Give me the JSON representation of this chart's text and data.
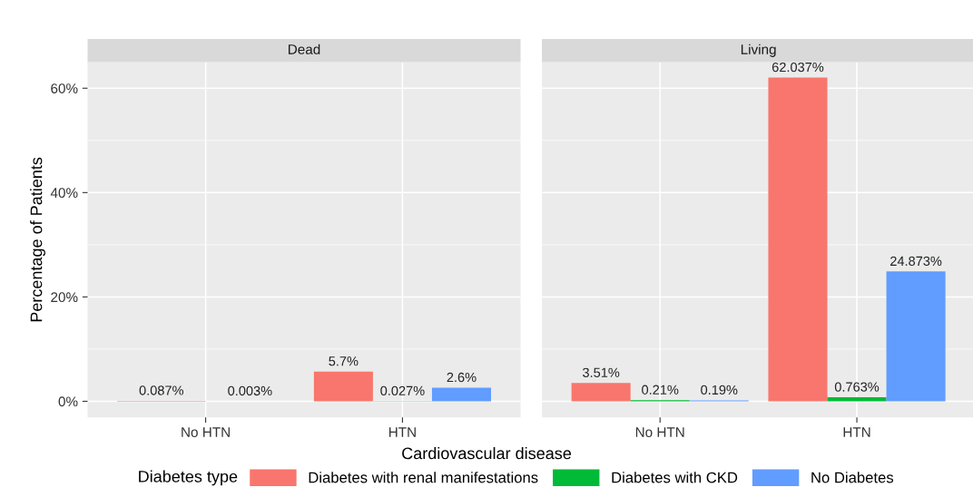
{
  "chart_data": [
    {
      "type": "bar",
      "title": "Dead",
      "ylabel": "Percentage of Patients",
      "xlabel": "Cardiovascular disease",
      "legend_title": "Diabetes type",
      "legend": "bottom",
      "grid": true,
      "categories": [
        "No HTN",
        "HTN"
      ],
      "ylim": [
        -3.1,
        65
      ],
      "yticks": [
        {
          "value": 0,
          "label": "0%"
        },
        {
          "value": 20,
          "label": "20%"
        },
        {
          "value": 40,
          "label": "40%"
        },
        {
          "value": 60,
          "label": "60%"
        }
      ],
      "series": [
        {
          "name": "Diabetes with renal manifestations",
          "color": "#f8766d",
          "values": [
            0.087,
            5.7
          ],
          "value_labels": [
            "0.087%",
            "5.7%"
          ]
        },
        {
          "name": "Diabetes with CKD",
          "color": "#00ba38",
          "values": [
            null,
            0.027
          ],
          "value_labels": [
            null,
            "0.027%"
          ]
        },
        {
          "name": "No Diabetes",
          "color": "#619cff",
          "values": [
            0.003,
            2.6
          ],
          "value_labels": [
            "0.003%",
            "2.6%"
          ]
        }
      ]
    },
    {
      "type": "bar",
      "title": "Living",
      "grid": true,
      "tick_labels": "x",
      "categories": [
        "No HTN",
        "HTN"
      ],
      "ylim": [
        -3.1,
        65
      ],
      "yticks": [
        0,
        20,
        40,
        60
      ],
      "series": [
        {
          "color": "#f8766d",
          "values": [
            3.51,
            62.037
          ],
          "value_labels": [
            "3.51%",
            "62.037%"
          ]
        },
        {
          "color": "#00ba38",
          "values": [
            0.21,
            0.763
          ],
          "value_labels": [
            "0.21%",
            "0.763%"
          ]
        },
        {
          "color": "#619cff",
          "values": [
            0.19,
            24.873
          ],
          "value_labels": [
            "0.19%",
            "24.873%"
          ]
        }
      ]
    }
  ]
}
